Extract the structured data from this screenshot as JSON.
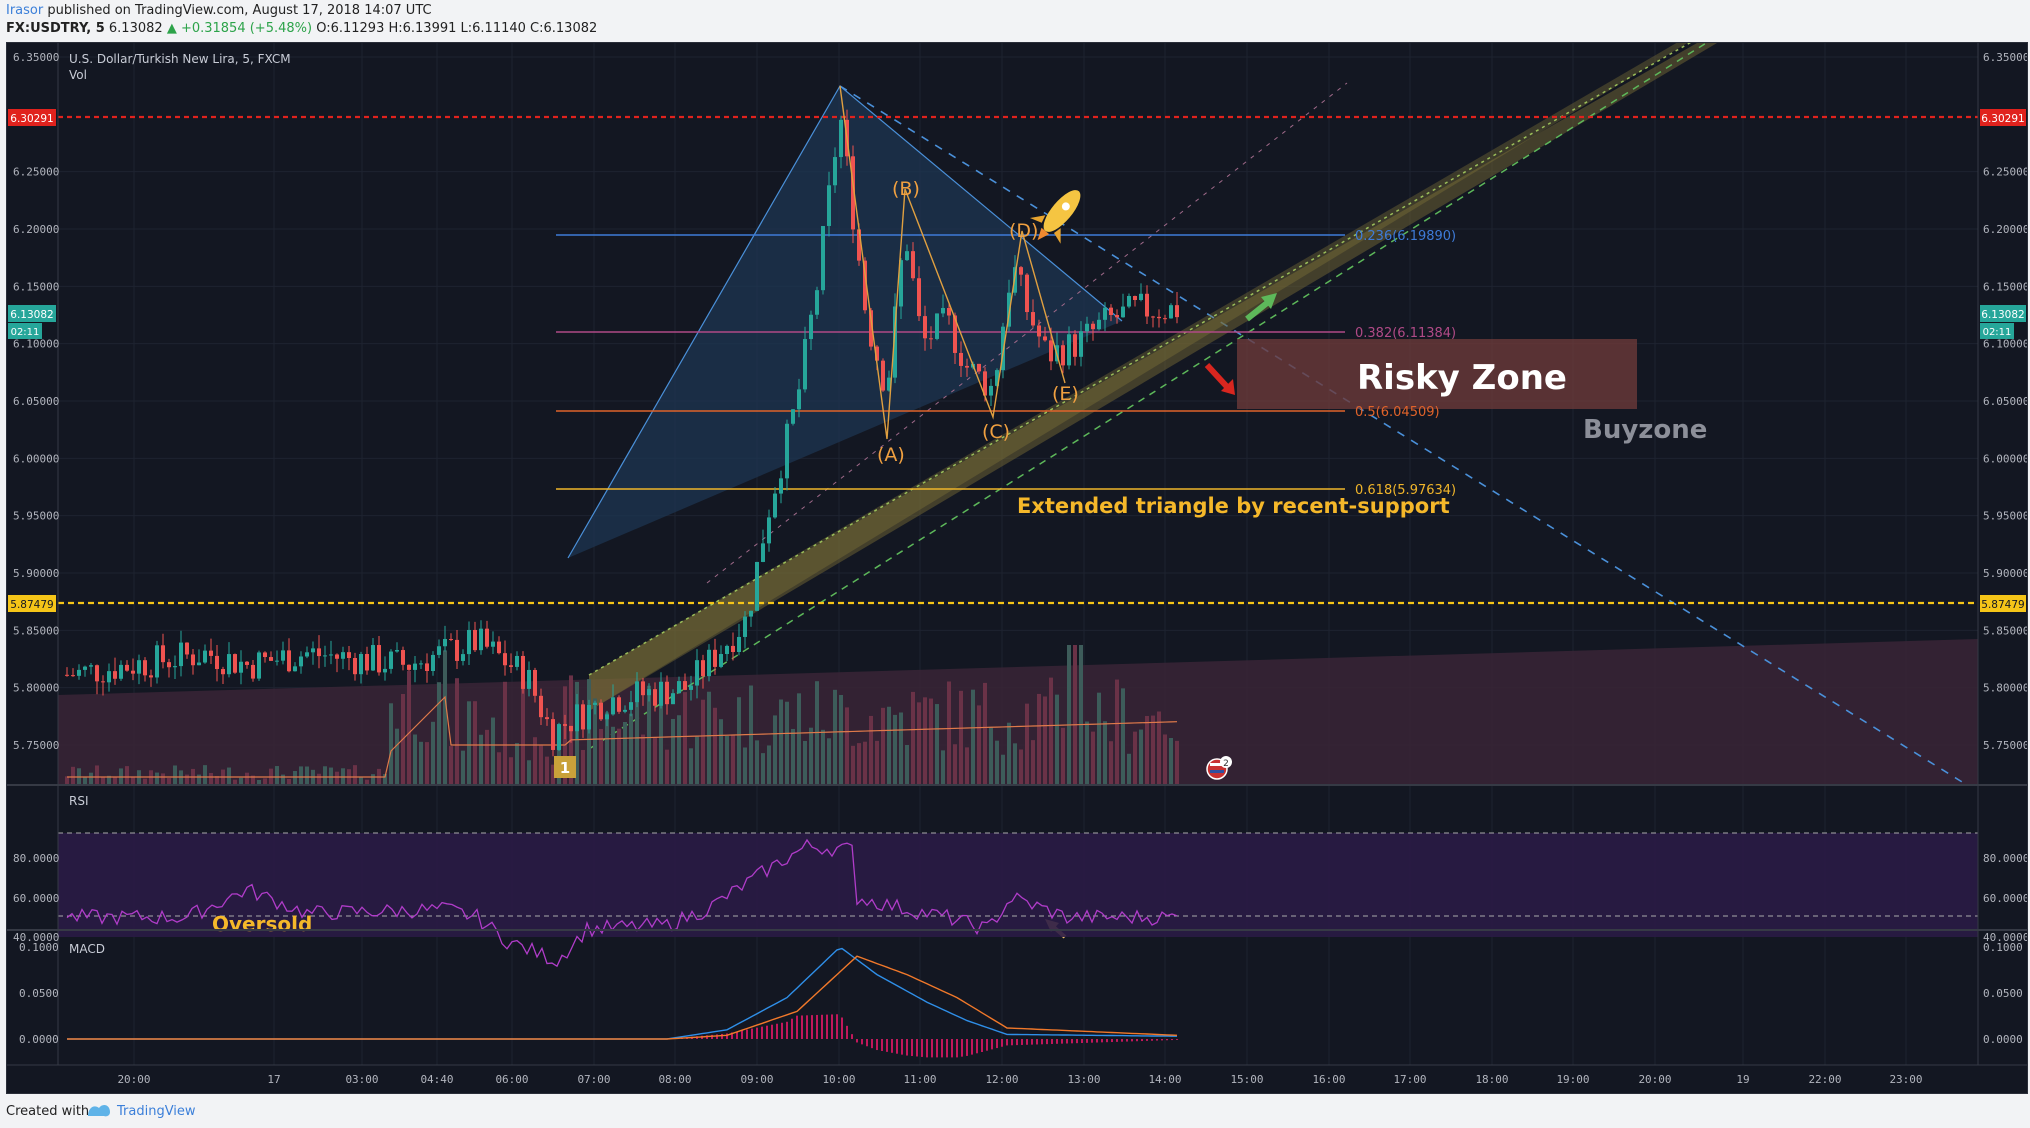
{
  "header": {
    "author": "Irasor",
    "published_text": "published on TradingView.com, August 17, 2018 14:07 UTC",
    "symbol": "FX:USDTRY, 5",
    "last": "6.13082",
    "change": "▲ +0.31854 (+5.48%)",
    "ohlc": "O:6.11293 H:6.13991 L:6.11140 C:6.13082"
  },
  "main_pane": {
    "title": "U.S. Dollar/Turkish New Lira, 5, FXCM",
    "vol_label": "Vol",
    "price_ticks": [
      "6.35000",
      "6.25000",
      "6.20000",
      "6.15000",
      "6.10000",
      "6.05000",
      "6.00000",
      "5.95000",
      "5.90000",
      "5.85000",
      "5.80000",
      "5.75000"
    ],
    "badges": {
      "resistance": "6.30291",
      "last_price": "6.13082",
      "countdown": "02:11",
      "support": "5.87479"
    },
    "fib_labels": [
      "0.236(6.19890)",
      "0.382(6.11384)",
      "0.5(6.04509)",
      "0.618(5.97634)"
    ],
    "wave_labels": [
      "(A)",
      "(B)",
      "(C)",
      "(D)",
      "(E)"
    ],
    "annotations": {
      "risky_zone": "Risky Zone",
      "buyzone": "Buyzone",
      "extended_triangle": "Extended triangle by recent-support",
      "marker_1": "1",
      "event_count": "2"
    }
  },
  "rsi_pane": {
    "title": "RSI",
    "ticks": [
      "80.0000",
      "60.0000",
      "40.0000"
    ],
    "oversold_label": "Oversold"
  },
  "macd_pane": {
    "title": "MACD",
    "ticks": [
      "0.1000",
      "0.0500",
      "0.0000"
    ]
  },
  "time_axis": [
    "20:00",
    "17",
    "03:00",
    "04:40",
    "06:00",
    "07:00",
    "08:00",
    "09:00",
    "10:00",
    "11:00",
    "12:00",
    "13:00",
    "14:00",
    "15:00",
    "16:00",
    "17:00",
    "18:00",
    "19:00",
    "20:00",
    "19",
    "22:00",
    "23:00"
  ],
  "footer": {
    "created_with": "Created with",
    "brand": "TradingView"
  },
  "colors": {
    "background": "#131722",
    "up_candle": "#26a69a",
    "down_candle": "#ef5350",
    "resistance": "#e0221d",
    "support": "#f5c518",
    "fib_0236": "#3e7bd8",
    "fib_0382": "#b04a86",
    "fib_05": "#e0632a",
    "fib_0618": "#f0b52a",
    "rsi": "#b03cc9",
    "macd": "#2f8fe8",
    "signal": "#f0782a"
  }
}
